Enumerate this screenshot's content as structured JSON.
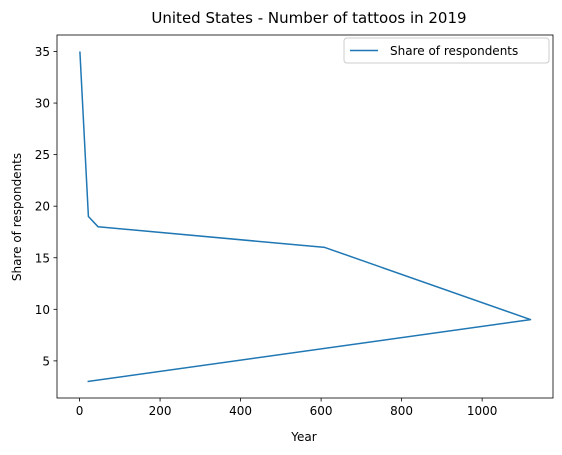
{
  "chart_data": {
    "type": "line",
    "title": "United States - Number of tattoos in 2019",
    "xlabel": "Year",
    "ylabel": "Share of respondents",
    "xlim": [
      -56,
      1176
    ],
    "ylim": [
      1.4,
      36.6
    ],
    "xticks": [
      0,
      200,
      400,
      600,
      800,
      1000
    ],
    "yticks": [
      5,
      10,
      15,
      20,
      25,
      30,
      35
    ],
    "grid": false,
    "legend_position": "top-right",
    "series": [
      {
        "name": "Share of respondents",
        "color": "#1f77b4",
        "x": [
          1,
          22,
          46,
          609,
          1120,
          20
        ],
        "y": [
          35,
          19,
          18,
          16,
          9,
          3
        ]
      }
    ]
  }
}
